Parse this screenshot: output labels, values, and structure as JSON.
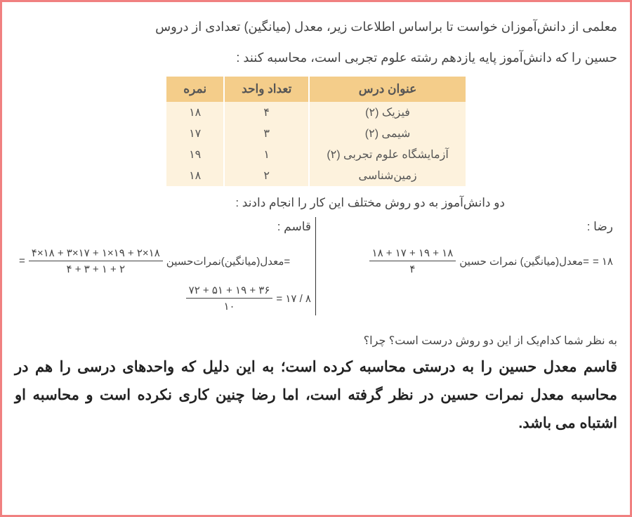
{
  "intro_line1": "معلمی از دانش‌آموزان خواست تا براساس اطلاعات زیر، معدل (میانگین) تعدادی از دروس",
  "intro_line2": "حسین را که دانش‌آموز پایه یازدهم رشته علوم تجربی است، محاسبه کنند :",
  "table": {
    "headers": {
      "subject": "عنوان درس",
      "units": "تعداد واحد",
      "score": "نمره"
    },
    "rows": [
      {
        "subject": "فیزیک (۲)",
        "units": "۴",
        "score": "۱۸"
      },
      {
        "subject": "شیمی (۲)",
        "units": "۳",
        "score": "۱۷"
      },
      {
        "subject": "آزمایشگاه علوم تجربی (۲)",
        "units": "۱",
        "score": "۱۹"
      },
      {
        "subject": "زمین‌شناسی",
        "units": "۲",
        "score": "۱۸"
      }
    ],
    "header_bg": "#f4cd8a",
    "cell_bg": "#fdf2dd"
  },
  "two_methods_text": "دو دانش‌آموز به دو روش مختلف این کار را انجام دادند :",
  "reza": {
    "name": "رضا :",
    "numerator": "۱۸ + ۱۷ + ۱۹ + ۱۸",
    "denominator": "۴",
    "label": "=معدل(میانگین) نمرات حسین",
    "result": "= ۱۸"
  },
  "ghasem": {
    "name": "قاسم :",
    "numerator": "۴×۱۸ + ۳×۱۷ + ۱×۱۹ + ۲×۱۸",
    "denominator": "۴ + ۳ + ۱ + ۲",
    "label": "=معدل(میانگین)نمرات‌حسین",
    "line2_num": "۷۲ + ۵۱ + ۱۹ + ۳۶",
    "line2_den": "۱۰",
    "line2_result": "= ۱۷ / ۸"
  },
  "question": "به نظر شما کدام‌یک از این دو روش درست است؟ چرا؟",
  "answer": "قاسم معدل حسین را به درستی محاسبه کرده است؛ به این دلیل که واحدهای درسی را هم در محاسبه معدل نمرات حسین در نظر گرفته است، اما رضا چنین کاری نکرده است و محاسبه او اشتباه می باشد.",
  "colors": {
    "border": "#f08080",
    "text": "#444444",
    "bold_text": "#222222"
  }
}
